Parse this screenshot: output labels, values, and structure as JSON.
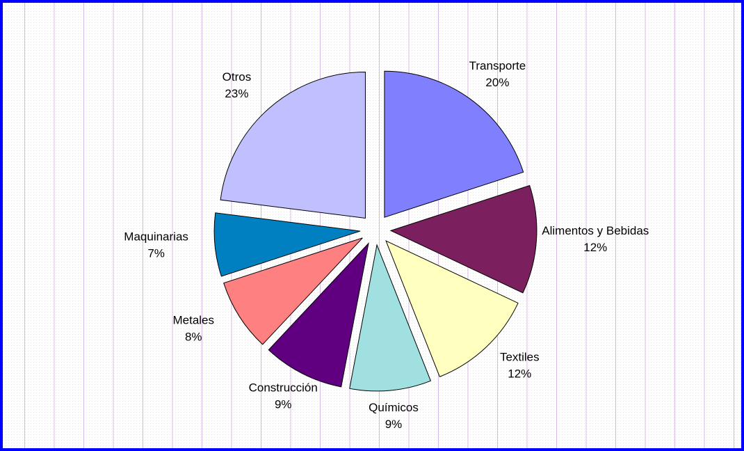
{
  "chart_data": {
    "type": "pie",
    "categories": [
      "Transporte",
      "Alimentos y Bebidas",
      "Textiles",
      "Químicos",
      "Construcción",
      "Metales",
      "Maquinarias",
      "Otros"
    ],
    "values": [
      20,
      12,
      12,
      9,
      9,
      8,
      7,
      23
    ],
    "value_labels": [
      "20%",
      "12%",
      "12%",
      "9%",
      "9%",
      "8%",
      "7%",
      "23%"
    ],
    "colors": [
      "#8080ff",
      "#7b1f5e",
      "#ffffc0",
      "#a0e0e0",
      "#600080",
      "#ff8080",
      "#0080c0",
      "#c0c0ff"
    ]
  }
}
